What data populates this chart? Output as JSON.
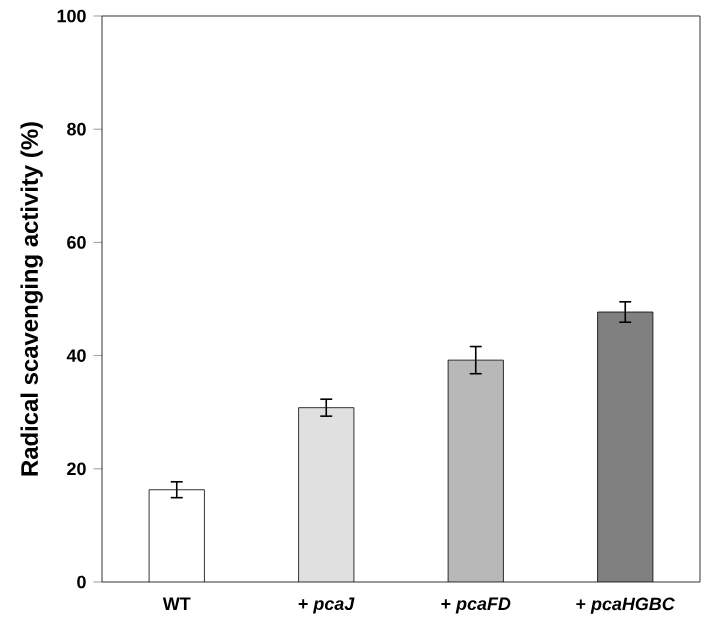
{
  "chart_data": {
    "type": "bar",
    "ylabel": "Radical scavenging activity (%)",
    "categories": [
      "WT",
      "+ *pcaJ*",
      "+ *pcaFD*",
      "+ *pcaHGBC*"
    ],
    "values": [
      16.3,
      30.8,
      39.2,
      47.7
    ],
    "errors": [
      1.4,
      1.5,
      2.4,
      1.8
    ],
    "colors": [
      "#ffffff",
      "#e0e0e0",
      "#b8b8b8",
      "#808080"
    ],
    "ylim": [
      0,
      100
    ],
    "yticks": [
      0,
      20,
      40,
      60,
      80,
      100
    ],
    "grid": false
  }
}
